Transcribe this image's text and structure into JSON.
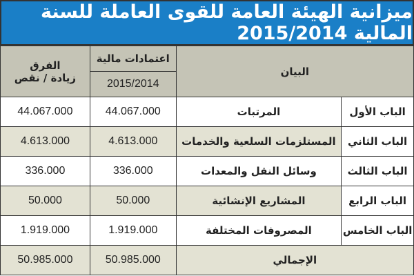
{
  "title": "ميزانية الهيئة العامة للقوى العاملة للسنة المالية 2015/2014",
  "header": {
    "statement": "البيان",
    "allocations": "اعتمادات مالية",
    "year": "2015/2014",
    "difference": "الفرق",
    "difference_sub": "زيادة / نقص"
  },
  "rows": [
    {
      "chapter": "الباب الأول",
      "item": "المرتبات",
      "allocation": "44.067.000",
      "difference": "44.067.000"
    },
    {
      "chapter": "الباب الثاني",
      "item": "المستلزمات السلعية والخدمات",
      "allocation": "4.613.000",
      "difference": "4.613.000"
    },
    {
      "chapter": "الباب الثالث",
      "item": "وسائل النقل والمعدات",
      "allocation": "336.000",
      "difference": "336.000"
    },
    {
      "chapter": "الباب الرابع",
      "item": "المشاريع الإنشائية",
      "allocation": "50.000",
      "difference": "50.000"
    },
    {
      "chapter": "الباب الخامس",
      "item": "المصروفات المختلفة",
      "allocation": "1.919.000",
      "difference": "1.919.000"
    }
  ],
  "total": {
    "label": "الإجمالي",
    "allocation": "50.985.000",
    "difference": "50.985.000"
  }
}
